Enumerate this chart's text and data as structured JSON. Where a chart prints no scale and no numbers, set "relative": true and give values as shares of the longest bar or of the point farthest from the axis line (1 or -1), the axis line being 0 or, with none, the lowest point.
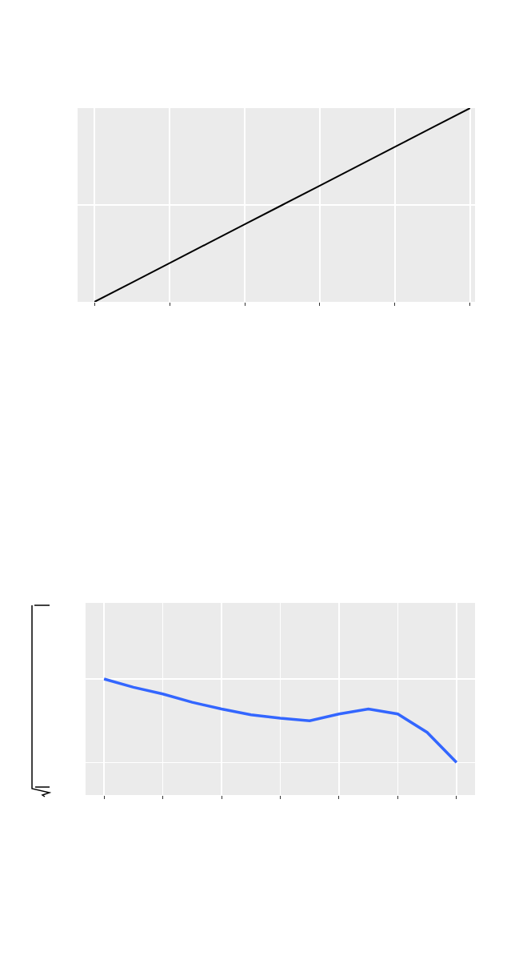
{
  "chart_data": [
    {
      "type": "line",
      "relative": true,
      "grid": true,
      "categories": [
        null,
        null,
        null,
        null,
        null,
        null,
        null,
        null,
        null,
        null,
        null
      ],
      "series": [
        {
          "color": "#000000",
          "values": [
            0,
            0.1,
            0.2,
            0.3,
            0.4,
            0.5,
            0.6,
            0.7,
            0.8,
            0.9,
            1
          ]
        }
      ]
    },
    {
      "type": "line",
      "relative": true,
      "grid": true,
      "categories": [
        null,
        null,
        null,
        null,
        null,
        null,
        null,
        null,
        null,
        null,
        null,
        null,
        null
      ],
      "series": [
        {
          "color": "#3366ff",
          "values": [
            1,
            0.9,
            0.82,
            0.72,
            0.64,
            0.57,
            0.53,
            0.5,
            0.58,
            0.64,
            0.58,
            0.36,
            0
          ]
        }
      ]
    }
  ]
}
